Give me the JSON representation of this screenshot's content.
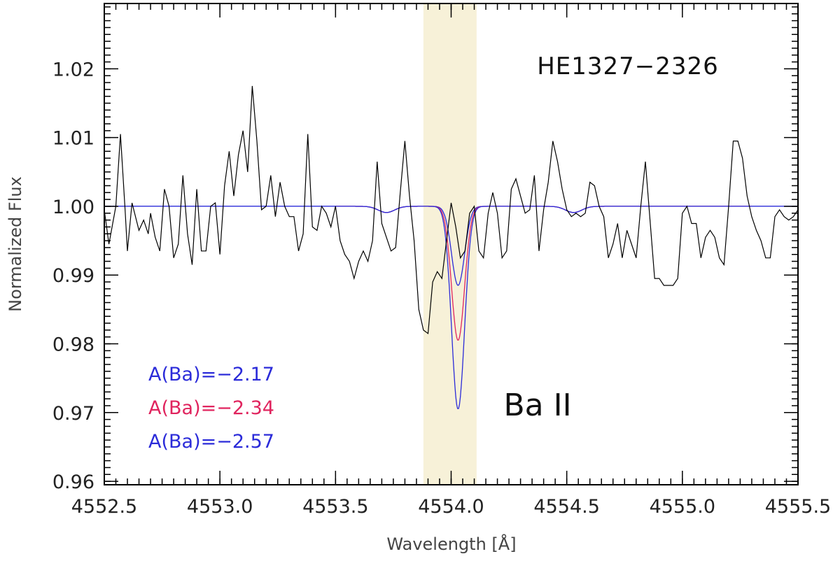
{
  "chart_data": {
    "type": "line",
    "xlabel": "Wavelength [Å]",
    "ylabel": "Normalized Flux",
    "xlim": [
      4552.5,
      4555.5
    ],
    "ylim": [
      0.9595,
      1.0295
    ],
    "xticks": [
      4552.5,
      4553.0,
      4553.5,
      4554.0,
      4554.5,
      4555.0,
      4555.5
    ],
    "xtick_labels": [
      "4552.5",
      "4553.0",
      "4553.5",
      "4554.0",
      "4554.5",
      "4555.0",
      "4555.5"
    ],
    "yticks": [
      0.96,
      0.97,
      0.98,
      0.99,
      1.0,
      1.01,
      1.02
    ],
    "ytick_labels": [
      "0.96",
      "0.97",
      "0.98",
      "0.99",
      "1.00",
      "1.01",
      "1.02"
    ],
    "highlight_band": {
      "x_from": 4553.88,
      "x_to": 4554.11,
      "color": "#f7f1d8"
    },
    "annotations": {
      "star": "HE1327−2326",
      "line": "Ba II"
    },
    "legend": [
      {
        "label": "A(Ba)=−2.17",
        "color": "#2b2bd9"
      },
      {
        "label": "A(Ba)=−2.34",
        "color": "#e0245e"
      },
      {
        "label": "A(Ba)=−2.57",
        "color": "#2b2bd9"
      }
    ],
    "observed": {
      "color": "#000000",
      "x": [
        4552.5,
        4552.52,
        4552.55,
        4552.57,
        4552.59,
        4552.6,
        4552.62,
        4552.65,
        4552.67,
        4552.69,
        4552.7,
        4552.72,
        4552.74,
        4552.76,
        4552.78,
        4552.8,
        4552.82,
        4552.84,
        4552.86,
        4552.88,
        4552.9,
        4552.92,
        4552.94,
        4552.96,
        4552.98,
        4553.0,
        4553.02,
        4553.04,
        4553.06,
        4553.08,
        4553.1,
        4553.12,
        4553.14,
        4553.16,
        4553.18,
        4553.2,
        4553.22,
        4553.24,
        4553.26,
        4553.28,
        4553.3,
        4553.32,
        4553.34,
        4553.36,
        4553.38,
        4553.4,
        4553.42,
        4553.44,
        4553.46,
        4553.48,
        4553.5,
        4553.52,
        4553.54,
        4553.56,
        4553.58,
        4553.6,
        4553.62,
        4553.64,
        4553.66,
        4553.68,
        4553.7,
        4553.72,
        4553.74,
        4553.76,
        4553.78,
        4553.8,
        4553.82,
        4553.84,
        4553.86,
        4553.88,
        4553.9,
        4553.92,
        4553.94,
        4553.96,
        4553.98,
        4554.0,
        4554.02,
        4554.04,
        4554.06,
        4554.08,
        4554.1,
        4554.12,
        4554.14,
        4554.16,
        4554.18,
        4554.2,
        4554.22,
        4554.24,
        4554.26,
        4554.28,
        4554.3,
        4554.32,
        4554.34,
        4554.36,
        4554.38,
        4554.4,
        4554.42,
        4554.44,
        4554.46,
        4554.48,
        4554.5,
        4554.52,
        4554.54,
        4554.56,
        4554.58,
        4554.6,
        4554.62,
        4554.64,
        4554.66,
        4554.68,
        4554.7,
        4554.72,
        4554.74,
        4554.76,
        4554.78,
        4554.8,
        4554.82,
        4554.84,
        4554.86,
        4554.88,
        4554.9,
        4554.92,
        4554.94,
        4554.96,
        4554.98,
        4555.0,
        4555.02,
        4555.04,
        4555.06,
        4555.08,
        4555.1,
        4555.12,
        4555.14,
        4555.16,
        4555.18,
        4555.2,
        4555.22,
        4555.24,
        4555.26,
        4555.28,
        4555.3,
        4555.32,
        4555.34,
        4555.36,
        4555.38,
        4555.4,
        4555.42,
        4555.44,
        4555.46,
        4555.48,
        4555.5
      ],
      "y": [
        0.9995,
        0.9945,
        1.0,
        1.0105,
        0.9995,
        0.9935,
        1.0005,
        0.9965,
        0.998,
        0.996,
        0.999,
        0.9955,
        0.9935,
        1.0025,
        1.0,
        0.9925,
        0.9945,
        1.0045,
        0.996,
        0.9915,
        1.0025,
        0.9935,
        0.9935,
        1.0,
        1.0005,
        0.993,
        1.003,
        1.008,
        1.0015,
        1.0075,
        1.011,
        1.005,
        1.0175,
        1.0095,
        0.9995,
        1.0,
        1.0045,
        0.9985,
        1.0035,
        1.0,
        0.9985,
        0.9985,
        0.9935,
        0.996,
        1.0105,
        0.997,
        0.9965,
        1.0,
        0.999,
        0.997,
        1.0,
        0.995,
        0.993,
        0.992,
        0.9895,
        0.992,
        0.9935,
        0.992,
        0.995,
        1.0065,
        0.9975,
        0.9955,
        0.9935,
        0.994,
        1.002,
        1.0095,
        1.0015,
        0.995,
        0.985,
        0.982,
        0.9815,
        0.989,
        0.9905,
        0.9895,
        0.995,
        1.0005,
        0.997,
        0.9925,
        0.9935,
        0.999,
        1.0,
        0.9935,
        0.9925,
        0.999,
        1.002,
        0.999,
        0.9925,
        0.9935,
        1.0025,
        1.004,
        1.0015,
        0.999,
        0.9995,
        1.0045,
        0.9935,
        0.9995,
        1.0035,
        1.0095,
        1.0065,
        1.0025,
        0.9995,
        0.9985,
        0.999,
        0.9985,
        0.999,
        1.0035,
        1.003,
        1.0,
        0.9985,
        0.9925,
        0.9945,
        0.9975,
        0.9925,
        0.9965,
        0.9945,
        0.9925,
        1.0,
        1.0065,
        0.998,
        0.9895,
        0.9895,
        0.9885,
        0.9885,
        0.9885,
        0.9895,
        0.999,
        1.0,
        0.9975,
        0.9975,
        0.9925,
        0.9955,
        0.9965,
        0.9955,
        0.9925,
        0.9915,
        1.0,
        1.0095,
        1.0095,
        1.007,
        1.0015,
        0.9985,
        0.9965,
        0.995,
        0.9925,
        0.9925,
        0.9985,
        0.9995,
        0.9985,
        0.998,
        0.9985,
        0.9995
      ]
    },
    "series": [
      {
        "label": "A(Ba)=−2.17",
        "color": "#2b2bd9",
        "continuum": 1.0,
        "depth": 0.0115,
        "x_range": [
          4552.5,
          4555.5
        ]
      },
      {
        "label": "A(Ba)=−2.34",
        "color": "#e0245e",
        "continuum": 1.0,
        "depth": 0.0195,
        "x_range": [
          4553.5,
          4555.3
        ]
      },
      {
        "label": "A(Ba)=−2.57",
        "color": "#2b2bd9",
        "continuum": 1.0,
        "depth": 0.0295,
        "x_range": [
          4552.5,
          4555.5
        ]
      }
    ],
    "model_line_center": 4554.03,
    "model_weak_lines": [
      {
        "center": 4553.72,
        "depth": 0.0009
      },
      {
        "center": 4554.53,
        "depth": 0.0009
      }
    ]
  }
}
